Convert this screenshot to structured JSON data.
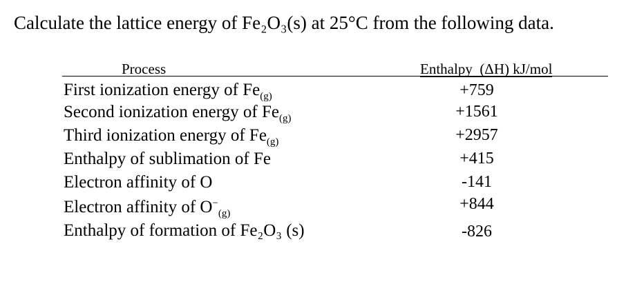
{
  "title": "Calculate the lattice energy of Fe₂O₃(s) at 25°C from the following data.",
  "table": {
    "header": [
      "Process",
      "Enthalpy  (ΔH) kJ/mol"
    ],
    "rows": [
      {
        "process": "First ionization energy of Fe",
        "sub": "(g)",
        "enthalpy": "+759"
      },
      {
        "process": "Second ionization energy of Fe",
        "sub": "(g)",
        "enthalpy": "+1561"
      },
      {
        "process": "Third ionization energy of Fe",
        "sub": "(g)",
        "enthalpy": "+2957"
      },
      {
        "process": "Enthalpy of sublimation of Fe",
        "enthalpy": "+415"
      },
      {
        "process": "Electron affinity of O",
        "enthalpy": "-141"
      },
      {
        "process": "Electron affinity of O",
        "sup": "−",
        "sub": "(g)",
        "enthalpy": "+844"
      },
      {
        "process": "Enthalpy of formation of Fe₂O₃ (s)",
        "enthalpy": "-826"
      }
    ]
  }
}
